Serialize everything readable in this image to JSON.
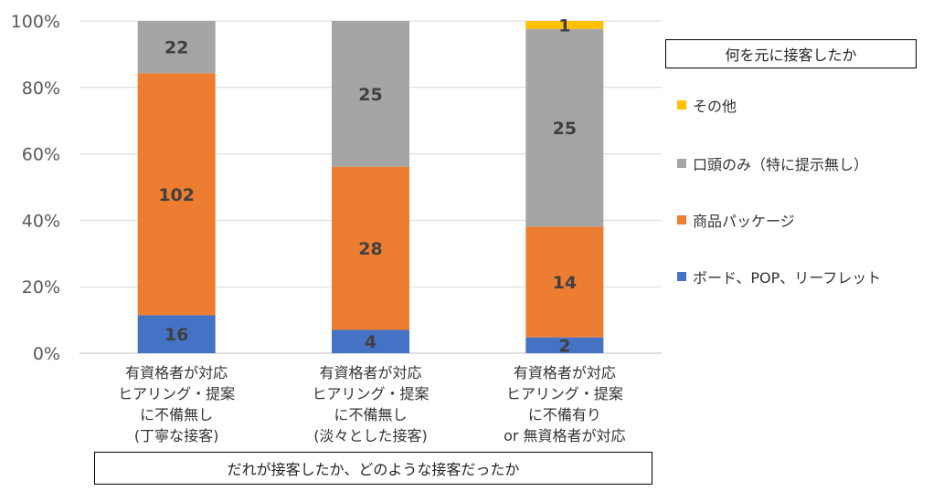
{
  "chart_data": {
    "type": "bar",
    "stacked": "percent",
    "categories": [
      [
        "有資格者が対応",
        "ヒアリング・提案",
        "に不備無し",
        "(丁寧な接客)"
      ],
      [
        "有資格者が対応",
        "ヒアリング・提案",
        "に不備無し",
        "(淡々とした接客)"
      ],
      [
        "有資格者が対応",
        "ヒアリング・提案",
        "に不備有り",
        "or 無資格者が対応"
      ]
    ],
    "series": [
      {
        "name": "ボード、POP、リーフレット",
        "color": "#4472C4",
        "values": [
          16,
          4,
          2
        ]
      },
      {
        "name": "商品パッケージ",
        "color": "#ED7D31",
        "values": [
          102,
          28,
          14
        ]
      },
      {
        "name": "口頭のみ（特に提示無し）",
        "color": "#A5A5A5",
        "values": [
          22,
          25,
          25
        ]
      },
      {
        "name": "その他",
        "color": "#FFC000",
        "values": [
          0,
          0,
          1
        ]
      }
    ],
    "yticks": [
      "0%",
      "20%",
      "40%",
      "60%",
      "80%",
      "100%"
    ],
    "ylim": [
      0,
      100
    ],
    "grid": true,
    "legend_title": "何を元に接客したか",
    "legend_position": "right",
    "xlabel": "だれが接客したか、どのような接客だったか"
  }
}
